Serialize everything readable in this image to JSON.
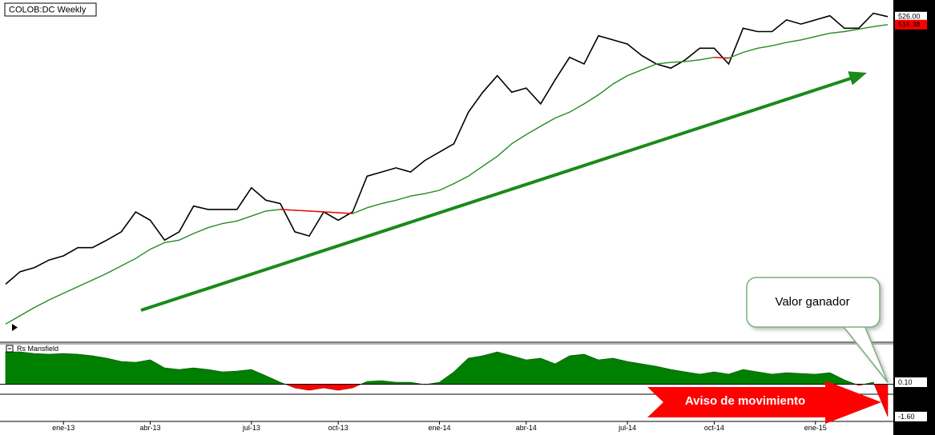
{
  "header": {
    "title": "COLOB:DC Weekly"
  },
  "chart_data": [
    {
      "type": "line",
      "categories": [
        null,
        null,
        null,
        null,
        "ene-13",
        null,
        null,
        null,
        null,
        null,
        "abr-13",
        null,
        null,
        null,
        null,
        null,
        null,
        "jul-13",
        null,
        null,
        null,
        null,
        null,
        "oct-13",
        null,
        null,
        null,
        null,
        null,
        null,
        "ene-14",
        null,
        null,
        null,
        null,
        null,
        "abr-14",
        null,
        null,
        null,
        null,
        null,
        null,
        "jul-14",
        null,
        null,
        null,
        null,
        null,
        "oct-14",
        null,
        null,
        null,
        null,
        null,
        null,
        "ene-15",
        null,
        null,
        null,
        null,
        null
      ],
      "series": [
        {
          "color": "#000000",
          "values": [
            204,
            219,
            224,
            233,
            238,
            248,
            248,
            257,
            267,
            291,
            281,
            257,
            267,
            298,
            294,
            294,
            294,
            320,
            305,
            301,
            267,
            262,
            291,
            281,
            291,
            334,
            339,
            344,
            339,
            353,
            363,
            373,
            411,
            435,
            455,
            435,
            440,
            421,
            450,
            477,
            469,
            503,
            498,
            493,
            479,
            469,
            464,
            474,
            488,
            488,
            469,
            512,
            508,
            508,
            522,
            517,
            522,
            527,
            512,
            512,
            530,
            526
          ],
          "value_labels": [
            null,
            null,
            null,
            null,
            null,
            null,
            null,
            null,
            null,
            null,
            null,
            null,
            null,
            null,
            null,
            null,
            null,
            null,
            null,
            null,
            null,
            null,
            null,
            null,
            null,
            null,
            null,
            null,
            null,
            null,
            null,
            null,
            null,
            null,
            null,
            null,
            null,
            null,
            null,
            null,
            null,
            null,
            null,
            null,
            null,
            null,
            null,
            null,
            null,
            null,
            null,
            null,
            null,
            null,
            null,
            null,
            null,
            null,
            null,
            null,
            null,
            "526.00"
          ]
        },
        {
          "color": "#228b22",
          "down_color": "#ff0000",
          "values": [
            156,
            166,
            176,
            185,
            193,
            201,
            209,
            217,
            226,
            235,
            246,
            254,
            257,
            265,
            272,
            277,
            280,
            286,
            292,
            294,
            293,
            292,
            291,
            290,
            289,
            296,
            301,
            305,
            310,
            313,
            317,
            325,
            334,
            346,
            358,
            373,
            384,
            394,
            404,
            411,
            421,
            432,
            445,
            455,
            462,
            469,
            471,
            472,
            474,
            477,
            476,
            483,
            488,
            491,
            495,
            498,
            502,
            506,
            508,
            511,
            514,
            516.38
          ],
          "value_labels": [
            null,
            null,
            null,
            null,
            null,
            null,
            null,
            null,
            null,
            null,
            null,
            null,
            null,
            null,
            null,
            null,
            null,
            null,
            null,
            null,
            null,
            null,
            null,
            null,
            null,
            null,
            null,
            null,
            null,
            null,
            null,
            null,
            null,
            null,
            null,
            null,
            null,
            null,
            null,
            null,
            null,
            null,
            null,
            null,
            null,
            null,
            null,
            null,
            null,
            null,
            null,
            null,
            null,
            null,
            null,
            null,
            null,
            null,
            null,
            null,
            null,
            "516.38"
          ]
        }
      ],
      "ylim": [
        137,
        546
      ]
    },
    {
      "type": "area",
      "title": "Rs Mansfield",
      "color": "#008000",
      "negative_color": "#ff0000",
      "values": [
        1.6,
        1.6,
        1.52,
        1.49,
        1.52,
        1.49,
        1.41,
        1.29,
        1.13,
        1.09,
        1.21,
        0.81,
        0.73,
        0.81,
        0.73,
        0.61,
        0.65,
        0.73,
        0.42,
        0.1,
        -0.18,
        -0.3,
        -0.18,
        -0.3,
        -0.18,
        0.14,
        0.18,
        0.1,
        0.1,
        -0.02,
        0.1,
        0.61,
        1.29,
        1.41,
        1.6,
        1.41,
        1.21,
        1.29,
        1.01,
        1.41,
        1.49,
        1.21,
        1.29,
        1.13,
        1.01,
        0.89,
        0.73,
        0.61,
        0.5,
        0.61,
        0.5,
        0.73,
        0.61,
        0.5,
        0.57,
        0.53,
        0.5,
        0.57,
        0.22,
        -0.06,
        0.1,
        -1.6
      ],
      "value_labels": [
        null,
        null,
        null,
        null,
        null,
        null,
        null,
        null,
        null,
        null,
        null,
        null,
        null,
        null,
        null,
        null,
        null,
        null,
        null,
        null,
        null,
        null,
        null,
        null,
        null,
        null,
        null,
        null,
        null,
        null,
        null,
        null,
        null,
        null,
        null,
        null,
        null,
        null,
        null,
        null,
        null,
        null,
        null,
        null,
        null,
        null,
        null,
        null,
        null,
        null,
        null,
        null,
        null,
        null,
        null,
        null,
        null,
        null,
        null,
        null,
        "0.10",
        "-1.60"
      ],
      "ylim": [
        -1.84,
        2.0
      ]
    }
  ],
  "annotations": {
    "callout": "Valor ganador",
    "banner": "Aviso de movimiento"
  }
}
